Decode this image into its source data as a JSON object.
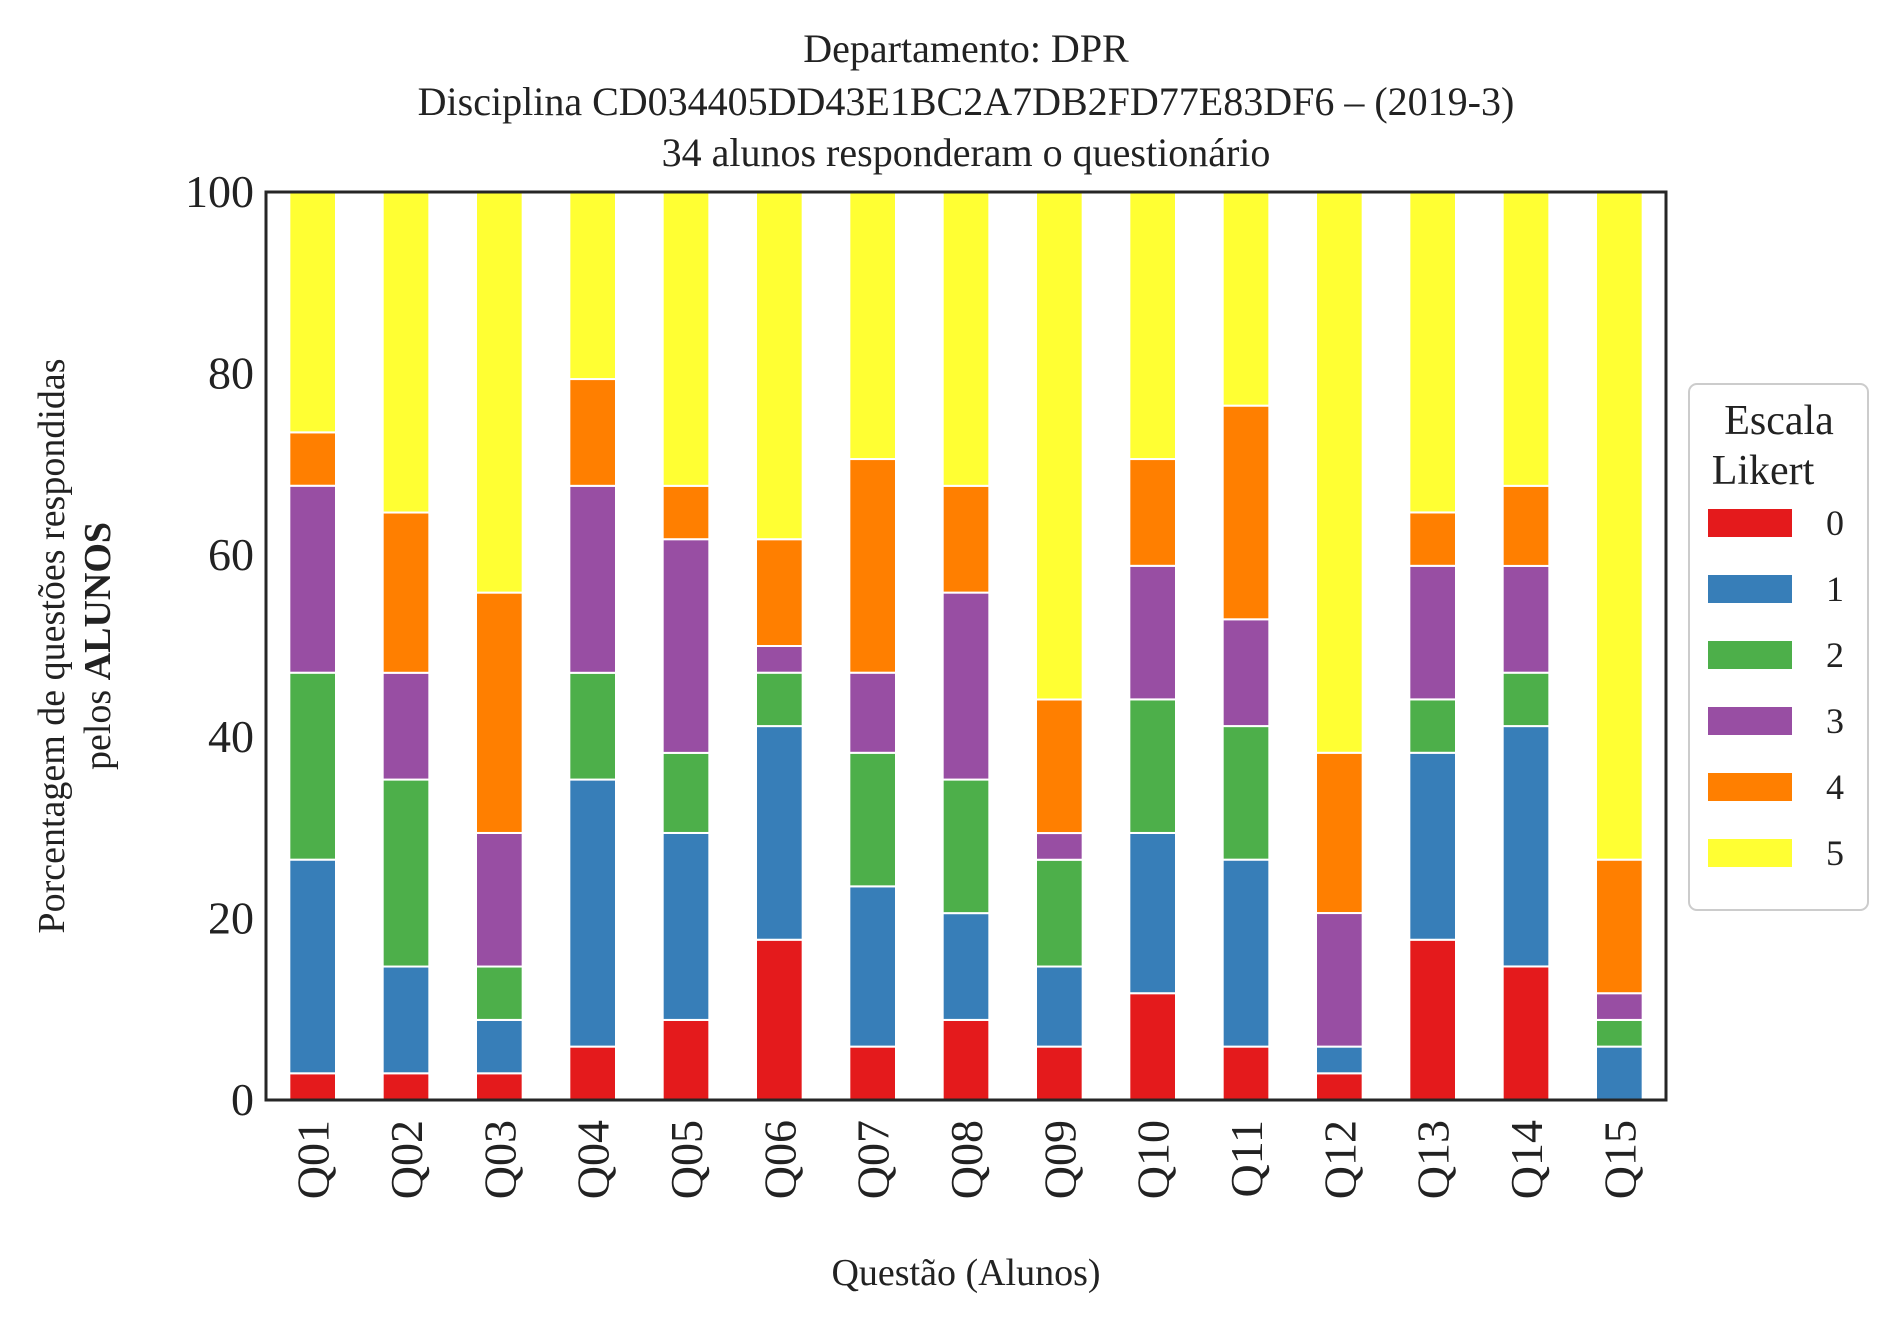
{
  "chart_data": {
    "type": "bar",
    "stacked": true,
    "title": [
      "Departamento: DPR",
      "Disciplina CD034405DD43E1BC2A7DB2FD77E83DF6 – (2019-3)",
      "34 alunos responderam o questionário"
    ],
    "xlabel": "Questão (Alunos)",
    "ylabel_line1": "Porcentagem de questões respondidas",
    "ylabel_line2_prefix": "pelos ",
    "ylabel_line2_bold": "ALUNOS",
    "ylim": [
      0,
      100
    ],
    "yticks": [
      "0",
      "20",
      "40",
      "60",
      "80",
      "100"
    ],
    "grid": false,
    "legend": {
      "title_line1": "Escala",
      "title_line2": "Likert",
      "placement": "center-right"
    },
    "categories": [
      "Q01",
      "Q02",
      "Q03",
      "Q04",
      "Q05",
      "Q06",
      "Q07",
      "Q08",
      "Q09",
      "Q10",
      "Q11",
      "Q12",
      "Q13",
      "Q14",
      "Q15"
    ],
    "series": [
      {
        "name": "0",
        "color": "#e41a1c",
        "values": [
          2.94,
          2.94,
          2.94,
          5.88,
          8.82,
          17.65,
          5.88,
          8.82,
          5.88,
          11.76,
          5.88,
          2.94,
          17.65,
          14.71,
          0.0
        ]
      },
      {
        "name": "1",
        "color": "#377eb8",
        "values": [
          23.53,
          11.76,
          5.88,
          29.41,
          20.59,
          23.53,
          17.65,
          11.76,
          8.82,
          17.65,
          20.59,
          2.94,
          20.59,
          26.47,
          5.88
        ]
      },
      {
        "name": "2",
        "color": "#4daf4a",
        "values": [
          20.59,
          20.59,
          5.88,
          11.76,
          8.82,
          5.88,
          14.71,
          14.71,
          11.76,
          14.71,
          14.71,
          0.0,
          5.88,
          5.88,
          2.94
        ]
      },
      {
        "name": "3",
        "color": "#984ea3",
        "values": [
          20.59,
          11.76,
          14.71,
          20.59,
          23.53,
          2.94,
          8.82,
          20.59,
          2.94,
          14.71,
          11.76,
          14.71,
          14.71,
          11.76,
          2.94
        ]
      },
      {
        "name": "4",
        "color": "#ff7f00",
        "values": [
          5.88,
          17.65,
          26.47,
          11.76,
          5.88,
          11.76,
          23.53,
          11.76,
          14.71,
          11.76,
          23.53,
          17.65,
          5.88,
          8.82,
          14.71
        ]
      },
      {
        "name": "5",
        "color": "#ffff33",
        "values": [
          26.47,
          35.29,
          44.12,
          20.59,
          32.35,
          38.24,
          29.41,
          32.35,
          55.88,
          29.41,
          23.53,
          61.76,
          35.29,
          32.35,
          73.53
        ]
      }
    ]
  }
}
